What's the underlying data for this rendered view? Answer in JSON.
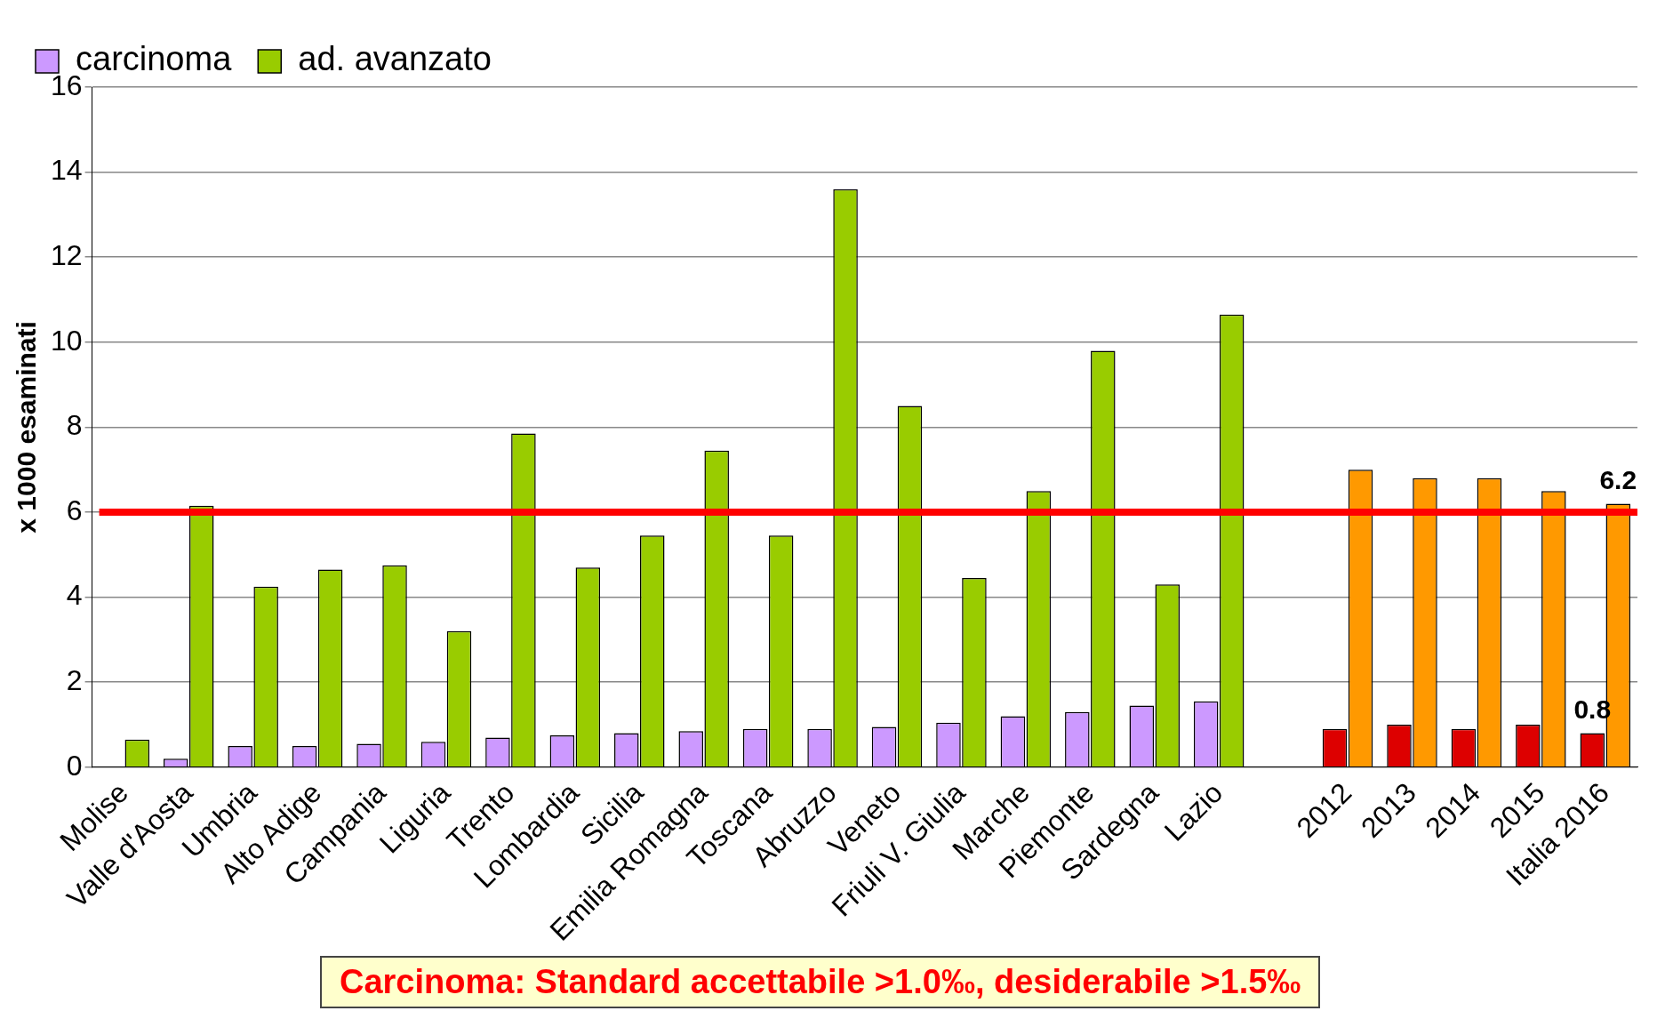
{
  "chart_data": {
    "type": "bar",
    "ylabel": "x 1000 esaminati",
    "categories": [
      "Molise",
      "Valle d'Aosta",
      "Umbria",
      "Alto Adige",
      "Campania",
      "Liguria",
      "Trento",
      "Lombardia",
      "Sicilia",
      "Emilia Romagna",
      "Toscana",
      "Abruzzo",
      "Veneto",
      "Friuli V. Giulia",
      "Marche",
      "Piemonte",
      "Sardegna",
      "Lazio",
      null,
      "2012",
      "2013",
      "2014",
      "2015",
      "Italia 2016"
    ],
    "series": [
      {
        "name": "carcinoma",
        "color": "#cc99ff",
        "colors": [
          "#cc99ff",
          "#cc99ff",
          "#cc99ff",
          "#cc99ff",
          "#cc99ff",
          "#cc99ff",
          "#cc99ff",
          "#cc99ff",
          "#cc99ff",
          "#cc99ff",
          "#cc99ff",
          "#cc99ff",
          "#cc99ff",
          "#cc99ff",
          "#cc99ff",
          "#cc99ff",
          "#cc99ff",
          "#cc99ff",
          "#cc99ff",
          "#dd0000",
          "#dd0000",
          "#dd0000",
          "#dd0000",
          "#dd0000"
        ],
        "values": [
          null,
          0.2,
          0.5,
          0.5,
          0.55,
          0.6,
          0.7,
          0.75,
          0.8,
          0.85,
          0.9,
          0.9,
          0.95,
          1.05,
          1.2,
          1.3,
          1.45,
          1.55,
          null,
          0.9,
          1.0,
          0.9,
          1.0,
          0.8
        ],
        "value_labels": [
          null,
          null,
          null,
          null,
          null,
          null,
          null,
          null,
          null,
          null,
          null,
          null,
          null,
          null,
          null,
          null,
          null,
          null,
          null,
          null,
          null,
          null,
          null,
          "0.8"
        ]
      },
      {
        "name": "ad. avanzato",
        "color": "#99cc00",
        "colors": [
          "#99cc00",
          "#99cc00",
          "#99cc00",
          "#99cc00",
          "#99cc00",
          "#99cc00",
          "#99cc00",
          "#99cc00",
          "#99cc00",
          "#99cc00",
          "#99cc00",
          "#99cc00",
          "#99cc00",
          "#99cc00",
          "#99cc00",
          "#99cc00",
          "#99cc00",
          "#99cc00",
          "#99cc00",
          "#ff9900",
          "#ff9900",
          "#ff9900",
          "#ff9900",
          "#ff9900"
        ],
        "values": [
          0.65,
          6.15,
          4.25,
          4.65,
          4.75,
          3.2,
          7.85,
          4.7,
          5.45,
          7.45,
          5.45,
          13.6,
          8.5,
          4.45,
          6.5,
          9.8,
          4.3,
          10.65,
          null,
          7.0,
          6.8,
          6.8,
          6.5,
          6.2
        ],
        "value_labels": [
          null,
          null,
          null,
          null,
          null,
          null,
          null,
          null,
          null,
          null,
          null,
          null,
          null,
          null,
          null,
          null,
          null,
          null,
          null,
          null,
          null,
          null,
          null,
          "6.2"
        ]
      }
    ],
    "ylim": [
      0,
      16
    ],
    "yticks": [
      0,
      2,
      4,
      6,
      8,
      10,
      12,
      14,
      16
    ],
    "grid": "y",
    "legend": "top left",
    "ref_lines": [
      {
        "axis": "y",
        "value": 6,
        "color": "#ff0000"
      }
    ],
    "annotations": [
      "Carcinoma: Standard accettabile >1.0‰, desiderabile >1.5‰"
    ]
  }
}
